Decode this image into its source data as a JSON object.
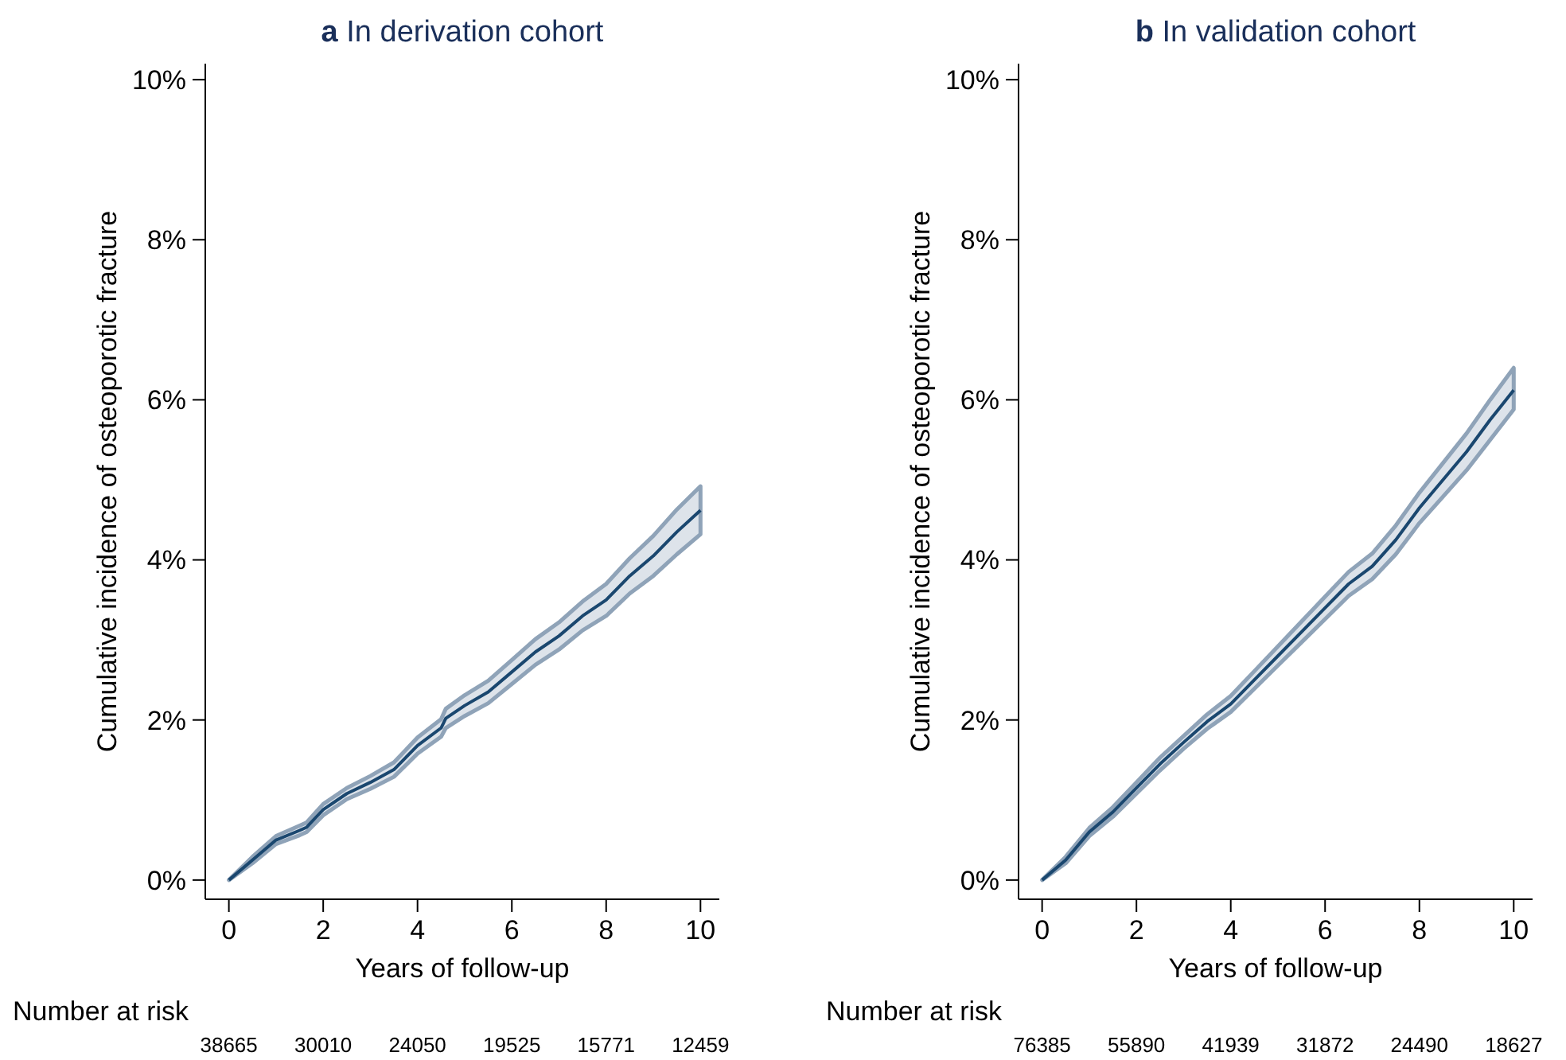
{
  "chart_data": [
    {
      "type": "line",
      "title": "a In derivation cohort",
      "xlabel": "Years of follow-up",
      "ylabel": "Cumulative incidence of osteoporotic fracture",
      "x": [
        0,
        0.5,
        1,
        1.5,
        1.65,
        2,
        2.5,
        3,
        3.5,
        4,
        4.5,
        4.6,
        5,
        5.5,
        6,
        6.5,
        7,
        7.5,
        8,
        8.5,
        9,
        9.5,
        10
      ],
      "series": [
        {
          "color": "#1a476f",
          "values": [
            0,
            0.25,
            0.5,
            0.62,
            0.66,
            0.88,
            1.08,
            1.22,
            1.38,
            1.68,
            1.9,
            2.02,
            2.18,
            2.35,
            2.6,
            2.85,
            3.05,
            3.3,
            3.5,
            3.8,
            4.05,
            4.35,
            4.62
          ],
          "lower": [
            0,
            0.21,
            0.45,
            0.56,
            0.6,
            0.81,
            1.01,
            1.14,
            1.29,
            1.58,
            1.79,
            1.9,
            2.05,
            2.21,
            2.45,
            2.69,
            2.88,
            3.12,
            3.3,
            3.58,
            3.8,
            4.07,
            4.32
          ],
          "upper": [
            0,
            0.29,
            0.55,
            0.68,
            0.72,
            0.95,
            1.15,
            1.3,
            1.47,
            1.78,
            2.01,
            2.14,
            2.31,
            2.49,
            2.75,
            3.01,
            3.22,
            3.48,
            3.7,
            4.02,
            4.3,
            4.63,
            4.92
          ]
        }
      ],
      "xlim": [
        -0.5,
        10.4
      ],
      "ylim": [
        -0.24,
        10.2
      ],
      "xticks": [
        0,
        2,
        4,
        6,
        8,
        10
      ],
      "yticks": [
        {
          "value": 0,
          "label": "0%"
        },
        {
          "value": 2,
          "label": "2%"
        },
        {
          "value": 4,
          "label": "4%"
        },
        {
          "value": 6,
          "label": "6%"
        },
        {
          "value": 8,
          "label": "8%"
        },
        {
          "value": 10,
          "label": "10%"
        }
      ],
      "grid": false,
      "annotations": [
        "Number at risk",
        "38665",
        "30010",
        "24050",
        "19525",
        "15771",
        "12459"
      ]
    },
    {
      "type": "line",
      "title": "b In validation cohort",
      "xlabel": "Years of follow-up",
      "ylabel": "Cumulative incidence of osteoporotic fracture",
      "x": [
        0,
        0.5,
        1,
        1.5,
        2,
        2.5,
        3,
        3.5,
        4,
        4.5,
        5,
        5.5,
        6,
        6.5,
        7,
        7.5,
        8,
        8.5,
        9,
        9.5,
        10
      ],
      "series": [
        {
          "color": "#1a476f",
          "values": [
            0,
            0.25,
            0.6,
            0.85,
            1.15,
            1.45,
            1.72,
            1.98,
            2.2,
            2.5,
            2.8,
            3.1,
            3.4,
            3.7,
            3.92,
            4.25,
            4.65,
            5.0,
            5.35,
            5.75,
            6.12
          ],
          "lower": [
            0,
            0.21,
            0.55,
            0.79,
            1.08,
            1.37,
            1.64,
            1.89,
            2.1,
            2.39,
            2.68,
            2.97,
            3.26,
            3.55,
            3.76,
            4.07,
            4.46,
            4.79,
            5.12,
            5.5,
            5.88
          ],
          "upper": [
            0,
            0.29,
            0.65,
            0.91,
            1.22,
            1.53,
            1.8,
            2.07,
            2.3,
            2.61,
            2.92,
            3.23,
            3.54,
            3.85,
            4.08,
            4.43,
            4.84,
            5.21,
            5.58,
            6.0,
            6.4
          ]
        }
      ],
      "xlim": [
        -0.5,
        10.4
      ],
      "ylim": [
        -0.24,
        10.2
      ],
      "xticks": [
        0,
        2,
        4,
        6,
        8,
        10
      ],
      "yticks": [
        {
          "value": 0,
          "label": "0%"
        },
        {
          "value": 2,
          "label": "2%"
        },
        {
          "value": 4,
          "label": "4%"
        },
        {
          "value": 6,
          "label": "6%"
        },
        {
          "value": 8,
          "label": "8%"
        },
        {
          "value": 10,
          "label": "10%"
        }
      ],
      "grid": false,
      "annotations": [
        "Number at risk",
        "76385",
        "55890",
        "41939",
        "31872",
        "24490",
        "18627"
      ]
    }
  ]
}
